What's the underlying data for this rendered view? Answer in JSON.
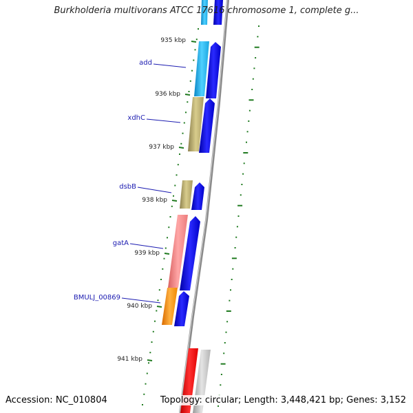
{
  "title": "Burkholderia multivorans ATCC 17616 chromosome 1, complete g...",
  "footer": {
    "accession": "Accession: NC_010804",
    "summary": "Topology: circular; Length: 3,448,421 bp; Genes: 3,152"
  },
  "ticks": [
    "935 kbp",
    "936 kbp",
    "937 kbp",
    "938 kbp",
    "939 kbp",
    "940 kbp",
    "941 kbp"
  ],
  "gene_labels": [
    "add",
    "xdhC",
    "dsbB",
    "gatA",
    "BMULJ_00869"
  ],
  "colors": {
    "backbone": "#8c8c8c",
    "strand_arrow": "#0000e0",
    "tick": "#1f7a1f",
    "label": "#1a1ab0",
    "cyan": "#22b8f0",
    "olive": "#b8a864",
    "pink": "#f08080",
    "orange": "#f58a0a",
    "red": "#ee0000",
    "gray": "#c0c0c0"
  }
}
